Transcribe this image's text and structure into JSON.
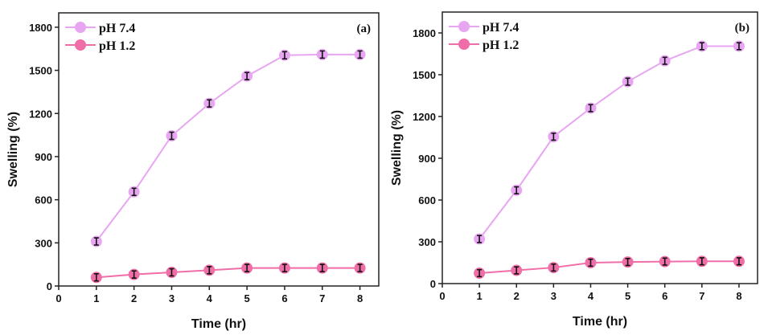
{
  "chart_data": [
    {
      "type": "line",
      "panel_label": "(a)",
      "xlabel": "Time (hr)",
      "ylabel": "Swelling (%)",
      "xlim": [
        0,
        8.5
      ],
      "ylim": [
        0,
        1900
      ],
      "xticks": [
        0,
        1,
        2,
        3,
        4,
        5,
        6,
        7,
        8
      ],
      "yticks": [
        0,
        300,
        600,
        900,
        1200,
        1500,
        1800
      ],
      "legend_position": "top-left",
      "x": [
        1,
        2,
        3,
        4,
        5,
        6,
        7,
        8
      ],
      "series": [
        {
          "name": "pH 7.4",
          "color": "#e8a6f2",
          "values": [
            310,
            655,
            1045,
            1270,
            1460,
            1605,
            1610,
            1610
          ],
          "error": [
            25,
            25,
            25,
            25,
            25,
            25,
            25,
            25
          ]
        },
        {
          "name": "pH 1.2",
          "color": "#f06ea8",
          "values": [
            60,
            80,
            95,
            110,
            125,
            125,
            125,
            125
          ],
          "error": [
            25,
            25,
            25,
            25,
            25,
            25,
            25,
            25
          ]
        }
      ]
    },
    {
      "type": "line",
      "panel_label": "(b)",
      "xlabel": "Time (hr)",
      "ylabel": "Swelling (%)",
      "xlim": [
        0,
        8.5
      ],
      "ylim": [
        0,
        1950
      ],
      "xticks": [
        0,
        1,
        2,
        3,
        4,
        5,
        6,
        7,
        8
      ],
      "yticks": [
        0,
        300,
        600,
        900,
        1200,
        1500,
        1800
      ],
      "legend_position": "top-left",
      "x": [
        1,
        2,
        3,
        4,
        5,
        6,
        7,
        8
      ],
      "series": [
        {
          "name": "pH 7.4",
          "color": "#e8a6f2",
          "values": [
            320,
            670,
            1055,
            1260,
            1450,
            1600,
            1705,
            1705
          ],
          "error": [
            25,
            25,
            25,
            25,
            25,
            25,
            25,
            25
          ]
        },
        {
          "name": "pH 1.2",
          "color": "#f06ea8",
          "values": [
            75,
            95,
            115,
            150,
            155,
            158,
            160,
            160
          ],
          "error": [
            25,
            25,
            25,
            25,
            25,
            25,
            25,
            25
          ]
        }
      ]
    }
  ]
}
